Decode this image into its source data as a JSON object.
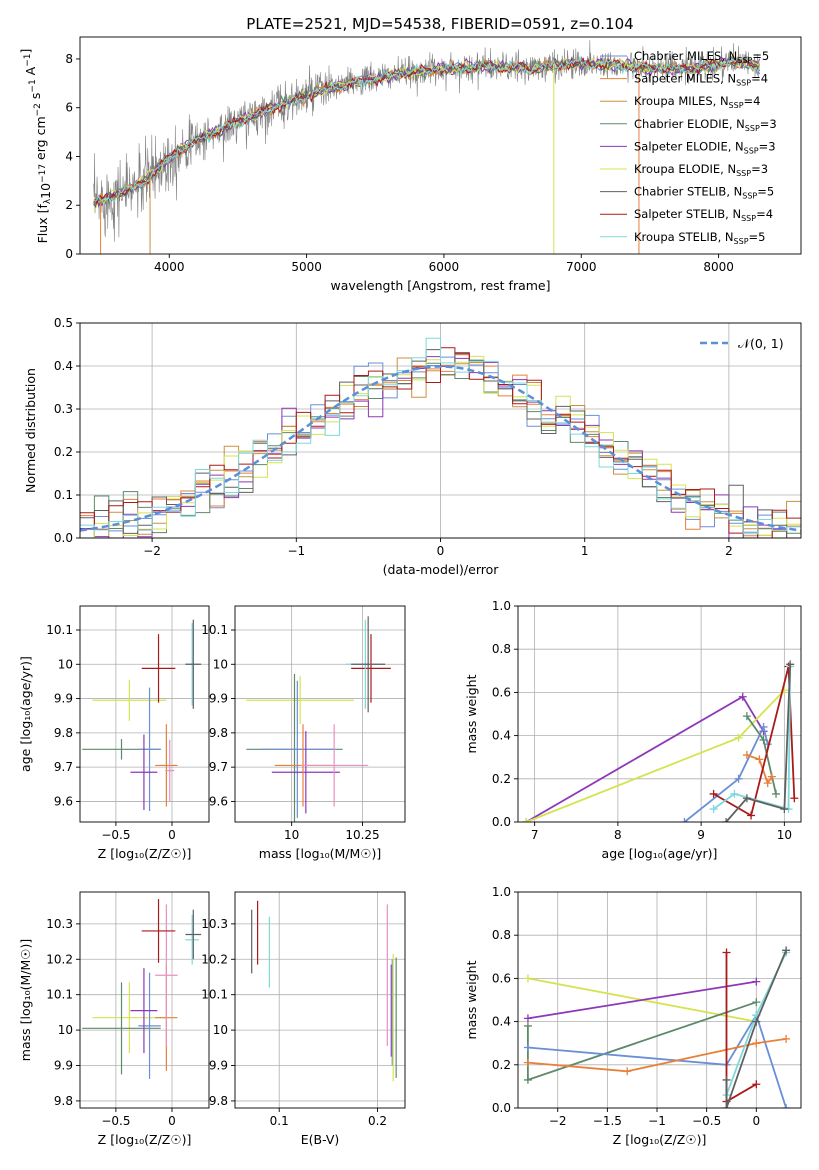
{
  "figure": {
    "title": "PLATE=2521, MJD=54538, FIBERID=0591, z=0.104"
  },
  "colors": {
    "Chabrier MILES": "#6a8fd6",
    "Salpeter MILES": "#e8803a",
    "Kroupa MILES": "#c89040",
    "Chabrier ELODIE": "#5e8a6a",
    "Salpeter ELODIE": "#8e38b8",
    "Kroupa ELODIE": "#d4e450",
    "Chabrier STELIB": "#606060",
    "Salpeter STELIB": "#aa1a1a",
    "Kroupa STELIB": "#7ed8dc",
    "extra_pink": "#e890c0",
    "data": "#808080",
    "normal_curve": "#5b8fd8"
  },
  "chart_data": [
    {
      "id": "spectrum",
      "type": "line",
      "xlabel": "wavelength [Angstrom, rest frame]",
      "ylabel_main": "Flux [f",
      "ylabel_sub": "λ",
      "ylabel_rest": "10",
      "ylabel_exp": "−17",
      "ylabel_tail": " erg cm",
      "ylabel_tail_exp": "−2",
      "ylabel_tail2": " s",
      "ylabel_tail2_exp": "−1",
      "ylabel_tail3": " A",
      "ylabel_tail3_exp": "−1",
      "ylabel_end": "]",
      "xlim": [
        3350,
        8600
      ],
      "ylim": [
        0,
        8.9
      ],
      "xticks": [
        4000,
        5000,
        6000,
        7000,
        8000
      ],
      "yticks": [
        0,
        2,
        4,
        6,
        8
      ],
      "continuum": [
        [
          3450,
          2.1
        ],
        [
          3600,
          2.4
        ],
        [
          3800,
          2.9
        ],
        [
          3950,
          3.7
        ],
        [
          4100,
          4.4
        ],
        [
          4300,
          4.9
        ],
        [
          4500,
          5.4
        ],
        [
          4800,
          6.1
        ],
        [
          5100,
          6.7
        ],
        [
          5400,
          7.1
        ],
        [
          5700,
          7.4
        ],
        [
          6000,
          7.6
        ],
        [
          6300,
          7.7
        ],
        [
          6600,
          7.6
        ],
        [
          6900,
          7.8
        ],
        [
          7200,
          7.8
        ],
        [
          7500,
          7.6
        ],
        [
          7800,
          7.6
        ],
        [
          8100,
          7.9
        ],
        [
          8300,
          7.7
        ]
      ],
      "legend": [
        {
          "name": "Chabrier MILES",
          "nssp": "5"
        },
        {
          "name": "Salpeter MILES",
          "nssp": "4"
        },
        {
          "name": "Kroupa MILES",
          "nssp": "4"
        },
        {
          "name": "Chabrier ELODIE",
          "nssp": "3"
        },
        {
          "name": "Salpeter ELODIE",
          "nssp": "3"
        },
        {
          "name": "Kroupa ELODIE",
          "nssp": "3"
        },
        {
          "name": "Chabrier STELIB",
          "nssp": "5"
        },
        {
          "name": "Salpeter STELIB",
          "nssp": "4"
        },
        {
          "name": "Kroupa STELIB",
          "nssp": "5"
        }
      ],
      "legend_prefix": "N",
      "legend_sub": "SSP",
      "legend_placement": "top-right",
      "grid": false
    },
    {
      "id": "residuals",
      "type": "histogram",
      "xlabel": "(data-model)/error",
      "ylabel": "Normed distribution",
      "xlim": [
        -2.5,
        2.5
      ],
      "ylim": [
        0,
        0.5
      ],
      "xticks": [
        -2,
        -1,
        0,
        1,
        2
      ],
      "yticks": [
        0.0,
        0.1,
        0.2,
        0.3,
        0.4,
        0.5
      ],
      "bin_width": 0.1,
      "legend": [
        {
          "name": "𝒩(0, 1)"
        }
      ],
      "legend_placement": "top-right",
      "grid": true
    },
    {
      "id": "age_vs_Z",
      "type": "errorbar",
      "xlabel": "Z [log₁₀(Z/Z☉)]",
      "ylabel": "age  [log₁₀(age/yr)]",
      "xlim": [
        -0.82,
        0.33
      ],
      "ylim": [
        9.54,
        10.17
      ],
      "xticks": [
        -0.5,
        0.0
      ],
      "yticks": [
        9.6,
        9.7,
        9.8,
        9.9,
        10.0,
        10.1
      ],
      "grid": true,
      "points": [
        {
          "series": "Kroupa ELODIE",
          "x": -0.38,
          "xerr": 0.33,
          "y": 9.895,
          "yerr": 0.06
        },
        {
          "series": "Chabrier ELODIE",
          "x": -0.45,
          "xerr": 0.35,
          "y": 9.752,
          "yerr": 0.03
        },
        {
          "series": "Chabrier MILES",
          "x": -0.2,
          "xerr": 0.1,
          "y": 9.752,
          "yerr": 0.18
        },
        {
          "series": "Salpeter ELODIE",
          "x": -0.25,
          "xerr": 0.12,
          "y": 9.685,
          "yerr": 0.11
        },
        {
          "series": "Salpeter MILES",
          "x": -0.05,
          "xerr": 0.1,
          "y": 9.705,
          "yerr": 0.12
        },
        {
          "series": "Salpeter STELIB",
          "x": -0.12,
          "xerr": 0.15,
          "y": 9.988,
          "yerr": 0.1
        },
        {
          "series": "Kroupa STELIB",
          "x": 0.18,
          "xerr": 0.06,
          "y": 10.0,
          "yerr": 0.12
        },
        {
          "series": "Chabrier STELIB",
          "x": 0.19,
          "xerr": 0.07,
          "y": 10.0,
          "yerr": 0.13
        },
        {
          "series": "extra_pink",
          "x": -0.02,
          "xerr": 0.04,
          "y": 9.69,
          "yerr": 0.09
        }
      ]
    },
    {
      "id": "age_vs_mass",
      "type": "errorbar",
      "xlabel": "mass [log₁₀(M/M☉)]",
      "xlim": [
        9.8,
        10.4
      ],
      "ylim": [
        9.54,
        10.17
      ],
      "xticks": [
        10.0,
        10.25
      ],
      "yticks": [
        9.6,
        9.7,
        9.8,
        9.9,
        10.0,
        10.1
      ],
      "grid": true,
      "points": [
        {
          "series": "Kroupa ELODIE",
          "x": 10.03,
          "xerr": 0.19,
          "y": 9.895,
          "yerr": 0.07
        },
        {
          "series": "Chabrier ELODIE",
          "x": 10.01,
          "xerr": 0.17,
          "y": 9.752,
          "yerr": 0.22
        },
        {
          "series": "Chabrier MILES",
          "x": 10.02,
          "xerr": 0.13,
          "y": 9.752,
          "yerr": 0.2
        },
        {
          "series": "Salpeter ELODIE",
          "x": 10.05,
          "xerr": 0.12,
          "y": 9.685,
          "yerr": 0.12
        },
        {
          "series": "Salpeter MILES",
          "x": 10.04,
          "xerr": 0.1,
          "y": 9.705,
          "yerr": 0.12
        },
        {
          "series": "extra_pink",
          "x": 10.15,
          "xerr": 0.12,
          "y": 9.705,
          "yerr": 0.12
        },
        {
          "series": "Salpeter STELIB",
          "x": 10.28,
          "xerr": 0.07,
          "y": 9.988,
          "yerr": 0.1
        },
        {
          "series": "Kroupa STELIB",
          "x": 10.26,
          "xerr": 0.07,
          "y": 10.0,
          "yerr": 0.13
        },
        {
          "series": "Chabrier STELIB",
          "x": 10.27,
          "xerr": 0.06,
          "y": 10.0,
          "yerr": 0.14
        }
      ]
    },
    {
      "id": "mass_weight_vs_age",
      "type": "line",
      "xlabel": "age  [log₁₀(age/yr)]",
      "ylabel": "mass weight",
      "xlim": [
        6.8,
        10.2
      ],
      "ylim": [
        0,
        1.0
      ],
      "xticks": [
        7,
        8,
        9,
        10
      ],
      "yticks": [
        0.0,
        0.2,
        0.4,
        0.6,
        0.8,
        1.0
      ],
      "grid": true,
      "series": [
        {
          "series": "Salpeter ELODIE",
          "x": [
            6.9,
            9.5,
            9.75
          ],
          "y": [
            0.0,
            0.58,
            0.42
          ]
        },
        {
          "series": "Kroupa ELODIE",
          "x": [
            6.9,
            9.45,
            10.0
          ],
          "y": [
            0.0,
            0.39,
            0.61
          ]
        },
        {
          "series": "Chabrier MILES",
          "x": [
            8.8,
            9.45,
            9.75,
            9.8
          ],
          "y": [
            0.0,
            0.2,
            0.44,
            0.36
          ]
        },
        {
          "series": "Chabrier ELODIE",
          "x": [
            9.55,
            9.75,
            9.9
          ],
          "y": [
            0.49,
            0.38,
            0.13
          ]
        },
        {
          "series": "Salpeter MILES",
          "x": [
            9.55,
            9.7,
            9.8,
            9.85
          ],
          "y": [
            0.31,
            0.29,
            0.18,
            0.21
          ]
        },
        {
          "series": "Salpeter STELIB",
          "x": [
            9.15,
            9.6,
            10.05,
            10.12
          ],
          "y": [
            0.13,
            0.03,
            0.72,
            0.11
          ]
        },
        {
          "series": "Kroupa STELIB",
          "x": [
            9.15,
            9.4,
            10.05,
            10.07
          ],
          "y": [
            0.06,
            0.13,
            0.06,
            0.72
          ]
        },
        {
          "series": "Chabrier STELIB",
          "x": [
            9.3,
            9.55,
            10.0,
            10.07
          ],
          "y": [
            0.0,
            0.11,
            0.06,
            0.73
          ]
        }
      ]
    },
    {
      "id": "mass_vs_Z",
      "type": "errorbar",
      "xlabel": "Z [log₁₀(Z/Z☉)]",
      "ylabel": "mass [log₁₀(M/M☉)]",
      "xlim": [
        -0.82,
        0.33
      ],
      "ylim": [
        9.78,
        10.39
      ],
      "xticks": [
        -0.5,
        0.0
      ],
      "yticks": [
        9.8,
        9.9,
        10.0,
        10.1,
        10.2,
        10.3
      ],
      "grid": true,
      "points": [
        {
          "series": "Kroupa ELODIE",
          "x": -0.38,
          "xerr": 0.33,
          "y": 10.035,
          "yerr": 0.1
        },
        {
          "series": "Chabrier ELODIE",
          "x": -0.45,
          "xerr": 0.35,
          "y": 10.005,
          "yerr": 0.13
        },
        {
          "series": "Chabrier MILES",
          "x": -0.2,
          "xerr": 0.1,
          "y": 10.012,
          "yerr": 0.15
        },
        {
          "series": "Salpeter ELODIE",
          "x": -0.25,
          "xerr": 0.12,
          "y": 10.055,
          "yerr": 0.12
        },
        {
          "series": "Salpeter MILES",
          "x": -0.05,
          "xerr": 0.1,
          "y": 10.035,
          "yerr": 0.15
        },
        {
          "series": "extra_pink",
          "x": -0.05,
          "xerr": 0.1,
          "y": 10.155,
          "yerr": 0.2
        },
        {
          "series": "Salpeter STELIB",
          "x": -0.12,
          "xerr": 0.15,
          "y": 10.28,
          "yerr": 0.09
        },
        {
          "series": "Kroupa STELIB",
          "x": 0.18,
          "xerr": 0.06,
          "y": 10.255,
          "yerr": 0.07
        },
        {
          "series": "Chabrier STELIB",
          "x": 0.19,
          "xerr": 0.07,
          "y": 10.27,
          "yerr": 0.07
        }
      ]
    },
    {
      "id": "mass_vs_ebv",
      "type": "errorbar",
      "xlabel": "E(B-V)",
      "xlim": [
        0.055,
        0.228
      ],
      "ylim": [
        9.78,
        10.39
      ],
      "xticks": [
        0.1,
        0.2
      ],
      "yticks": [
        9.8,
        9.9,
        10.0,
        10.1,
        10.2,
        10.3
      ],
      "grid": true,
      "points": [
        {
          "series": "Chabrier STELIB",
          "x": 0.072,
          "y": 10.25,
          "yerr": 0.09
        },
        {
          "series": "Salpeter STELIB",
          "x": 0.078,
          "y": 10.275,
          "yerr": 0.09
        },
        {
          "series": "Kroupa STELIB",
          "x": 0.09,
          "y": 10.22,
          "yerr": 0.1
        },
        {
          "series": "extra_pink",
          "x": 0.21,
          "y": 10.155,
          "yerr": 0.2
        },
        {
          "series": "Salpeter ELODIE",
          "x": 0.214,
          "y": 10.055,
          "yerr": 0.13
        },
        {
          "series": "Chabrier MILES",
          "x": 0.215,
          "y": 10.05,
          "yerr": 0.15
        },
        {
          "series": "Kroupa ELODIE",
          "x": 0.216,
          "y": 10.035,
          "yerr": 0.18
        },
        {
          "series": "Chabrier ELODIE",
          "x": 0.219,
          "y": 10.035,
          "yerr": 0.17
        }
      ]
    },
    {
      "id": "mass_weight_vs_Z",
      "type": "line",
      "xlabel": "Z [log₁₀(Z/Z☉)]",
      "ylabel": "mass weight",
      "xlim": [
        -2.4,
        0.45
      ],
      "ylim": [
        0,
        1.0
      ],
      "xticks": [
        -2.0,
        -1.5,
        -1.0,
        -0.5,
        0.0
      ],
      "yticks": [
        0.0,
        0.2,
        0.4,
        0.6,
        0.8,
        1.0
      ],
      "grid": true,
      "series": [
        {
          "series": "Kroupa ELODIE",
          "x": [
            -2.3,
            0.0
          ],
          "y": [
            0.6,
            0.4
          ]
        },
        {
          "series": "Salpeter ELODIE",
          "x": [
            -2.3,
            0.0
          ],
          "y": [
            0.415,
            0.585
          ]
        },
        {
          "series": "Chabrier ELODIE",
          "x": [
            -2.3,
            -2.3,
            0.0
          ],
          "y": [
            0.38,
            0.13,
            0.49
          ]
        },
        {
          "series": "Chabrier MILES",
          "x": [
            -2.3,
            -0.3,
            0.0,
            0.3
          ],
          "y": [
            0.28,
            0.2,
            0.43,
            0.0
          ]
        },
        {
          "series": "Salpeter MILES",
          "x": [
            -2.3,
            -1.3,
            0.0,
            0.3
          ],
          "y": [
            0.21,
            0.17,
            0.3,
            0.32
          ]
        },
        {
          "series": "Salpeter STELIB",
          "x": [
            -0.3,
            -0.3,
            0.0
          ],
          "y": [
            0.72,
            0.03,
            0.11
          ]
        },
        {
          "series": "Kroupa STELIB",
          "x": [
            -0.3,
            0.0,
            0.3
          ],
          "y": [
            0.06,
            0.43,
            0.72
          ]
        },
        {
          "series": "Chabrier STELIB",
          "x": [
            -0.3,
            -0.3,
            0.0,
            0.3
          ],
          "y": [
            0.13,
            0.0,
            0.4,
            0.73
          ]
        }
      ]
    }
  ]
}
